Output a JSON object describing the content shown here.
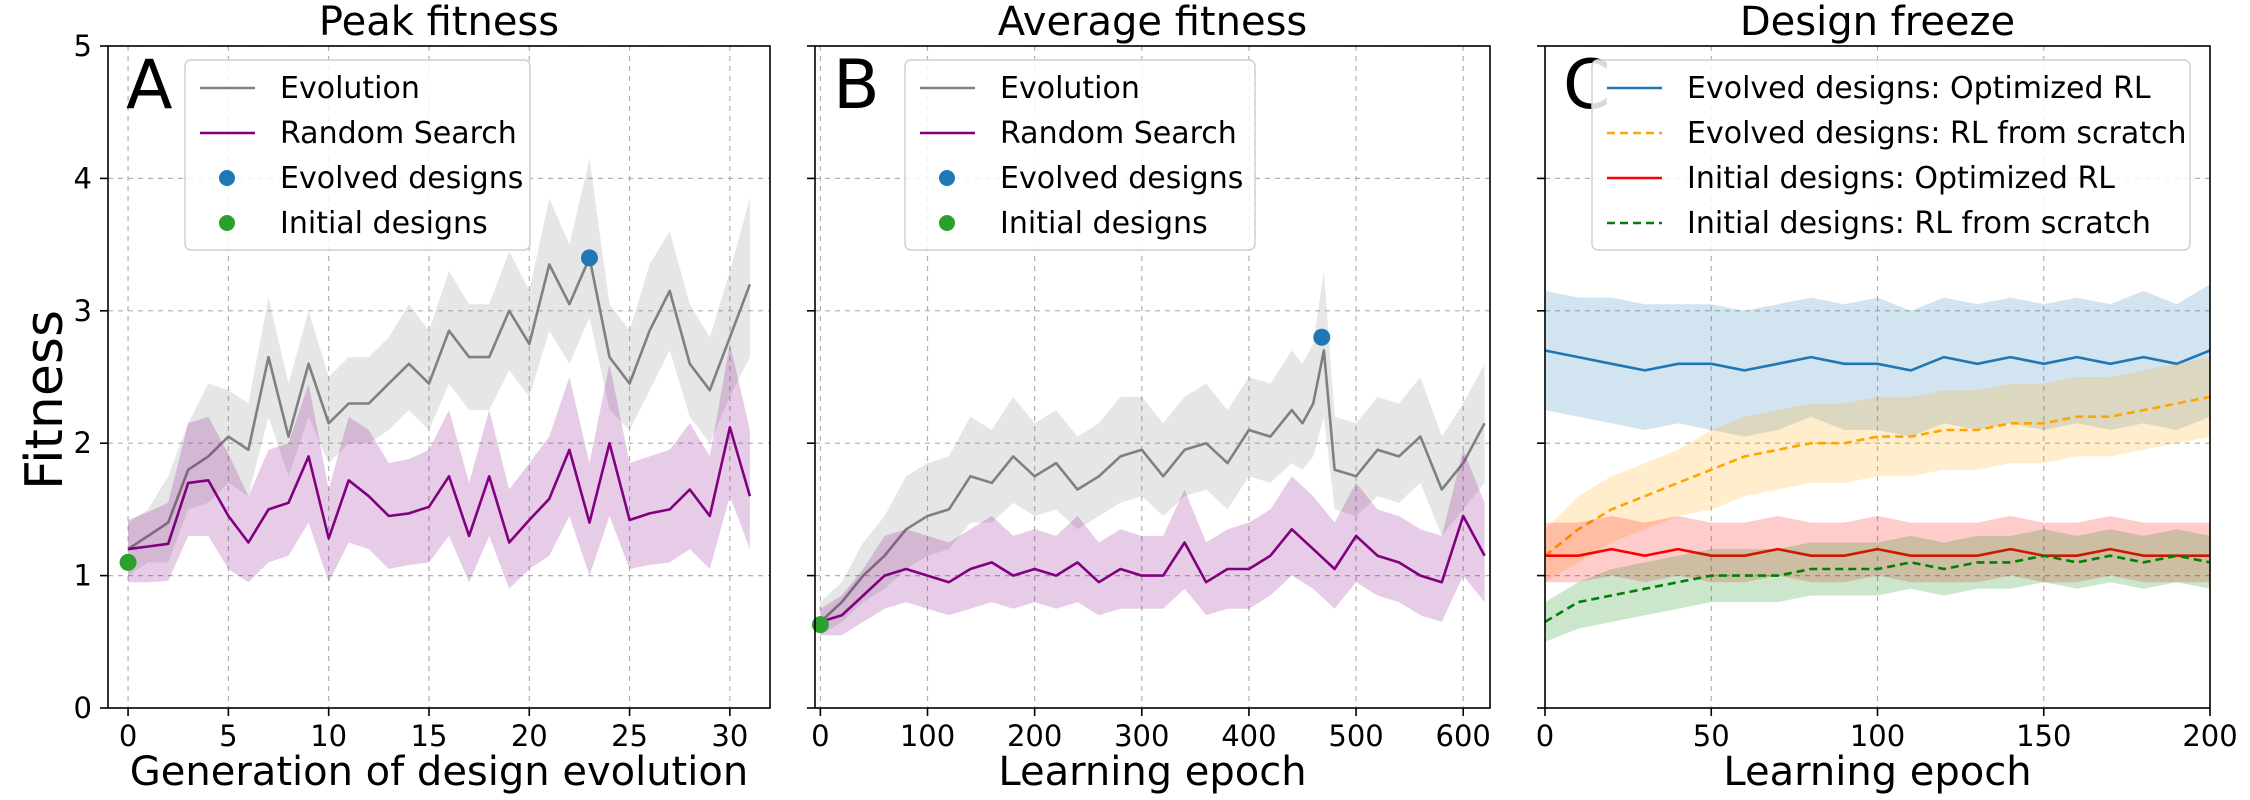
{
  "figure": {
    "ylabel": "Fitness",
    "colors": {
      "evolution": "#808080",
      "random_search": "#800080",
      "evolved_marker": "#1f77b4",
      "initial_marker": "#2ca02c",
      "evolved_optimized": "#1f77b4",
      "evolved_scratch": "#ffa500",
      "initial_optimized": "#ff0000",
      "initial_scratch": "#008000"
    }
  },
  "chart_data": [
    {
      "type": "line",
      "letter": "A",
      "title": "Peak fitness",
      "xlabel": "Generation of design evolution",
      "ylabel": "Fitness",
      "xlim": [
        -1,
        32
      ],
      "ylim": [
        0,
        5
      ],
      "xticks": [
        0,
        5,
        10,
        15,
        20,
        25,
        30
      ],
      "yticks": [
        0,
        1,
        2,
        3,
        4,
        5
      ],
      "grid": true,
      "legend_position": "top-left",
      "legend": [
        "Evolution",
        "Random Search",
        "Evolved designs",
        "Initial designs"
      ],
      "series": [
        {
          "name": "Evolution",
          "color": "#808080",
          "style": "solid",
          "x": [
            0,
            1,
            2,
            3,
            4,
            5,
            6,
            7,
            8,
            9,
            10,
            11,
            12,
            13,
            14,
            15,
            16,
            17,
            18,
            19,
            20,
            21,
            22,
            23,
            24,
            25,
            26,
            27,
            28,
            29,
            30,
            31
          ],
          "values": [
            1.2,
            1.3,
            1.4,
            1.8,
            1.9,
            2.05,
            1.95,
            2.65,
            2.05,
            2.6,
            2.15,
            2.3,
            2.3,
            2.45,
            2.6,
            2.45,
            2.85,
            2.65,
            2.65,
            3.0,
            2.75,
            3.35,
            3.05,
            3.4,
            2.65,
            2.45,
            2.85,
            3.15,
            2.6,
            2.4,
            2.8,
            3.2
          ],
          "band_low": [
            1.0,
            1.1,
            1.1,
            1.5,
            1.55,
            1.7,
            1.6,
            2.2,
            1.75,
            2.2,
            1.85,
            2.0,
            2.0,
            2.1,
            2.25,
            2.1,
            2.45,
            2.25,
            2.25,
            2.55,
            2.35,
            2.85,
            2.6,
            2.95,
            2.25,
            2.1,
            2.4,
            2.7,
            2.2,
            2.0,
            2.35,
            2.65
          ],
          "band_high": [
            1.4,
            1.5,
            1.75,
            2.15,
            2.45,
            2.4,
            2.3,
            3.1,
            2.45,
            3.0,
            2.5,
            2.65,
            2.65,
            2.8,
            3.05,
            2.85,
            3.3,
            3.05,
            3.05,
            3.45,
            3.15,
            3.85,
            3.5,
            4.15,
            3.05,
            2.85,
            3.35,
            3.6,
            3.05,
            2.8,
            3.3,
            3.85
          ]
        },
        {
          "name": "Random Search",
          "color": "#800080",
          "style": "solid",
          "x": [
            0,
            1,
            2,
            3,
            4,
            5,
            6,
            7,
            8,
            9,
            10,
            11,
            12,
            13,
            14,
            15,
            16,
            17,
            18,
            19,
            20,
            21,
            22,
            23,
            24,
            25,
            26,
            27,
            28,
            29,
            30,
            31
          ],
          "values": [
            1.2,
            1.22,
            1.24,
            1.7,
            1.72,
            1.45,
            1.25,
            1.5,
            1.55,
            1.9,
            1.28,
            1.72,
            1.6,
            1.45,
            1.47,
            1.52,
            1.75,
            1.3,
            1.75,
            1.25,
            1.42,
            1.58,
            1.95,
            1.4,
            2.0,
            1.42,
            1.47,
            1.5,
            1.65,
            1.45,
            2.12,
            1.6
          ],
          "band_low": [
            0.95,
            0.95,
            0.96,
            1.3,
            1.3,
            1.05,
            0.95,
            1.1,
            1.15,
            1.4,
            0.95,
            1.25,
            1.2,
            1.05,
            1.08,
            1.1,
            1.3,
            0.95,
            1.3,
            0.9,
            1.05,
            1.15,
            1.45,
            1.0,
            1.45,
            1.05,
            1.08,
            1.1,
            1.2,
            1.05,
            1.6,
            1.2
          ],
          "band_high": [
            1.42,
            1.48,
            1.55,
            2.15,
            2.2,
            1.92,
            1.6,
            1.95,
            2.0,
            2.45,
            1.65,
            2.2,
            2.1,
            1.85,
            1.88,
            1.95,
            2.25,
            1.7,
            2.25,
            1.65,
            1.85,
            2.05,
            2.5,
            1.85,
            2.6,
            1.85,
            1.9,
            1.95,
            2.15,
            1.9,
            2.75,
            2.1
          ]
        }
      ],
      "markers": [
        {
          "name": "Evolved designs",
          "color": "#1f77b4",
          "x": 23,
          "y": 3.4
        },
        {
          "name": "Initial designs",
          "color": "#2ca02c",
          "x": 0,
          "y": 1.1
        }
      ]
    },
    {
      "type": "line",
      "letter": "B",
      "title": "Average fitness",
      "xlabel": "Learning epoch",
      "xlim": [
        -5,
        625
      ],
      "ylim": [
        0,
        5
      ],
      "xticks": [
        0,
        100,
        200,
        300,
        400,
        500,
        600
      ],
      "yticks": [
        0,
        1,
        2,
        3,
        4,
        5
      ],
      "grid": true,
      "legend_position": "top-left",
      "legend": [
        "Evolution",
        "Random Search",
        "Evolved designs",
        "Initial designs"
      ],
      "series": [
        {
          "name": "Evolution",
          "color": "#808080",
          "style": "solid",
          "x": [
            0,
            20,
            40,
            60,
            80,
            100,
            120,
            140,
            160,
            180,
            200,
            220,
            240,
            260,
            280,
            300,
            320,
            340,
            360,
            380,
            400,
            420,
            440,
            450,
            460,
            470,
            480,
            500,
            520,
            540,
            560,
            580,
            600,
            620
          ],
          "values": [
            0.65,
            0.8,
            1.0,
            1.15,
            1.35,
            1.45,
            1.5,
            1.75,
            1.7,
            1.9,
            1.75,
            1.85,
            1.65,
            1.75,
            1.9,
            1.95,
            1.75,
            1.95,
            2.0,
            1.85,
            2.1,
            2.05,
            2.25,
            2.15,
            2.3,
            2.7,
            1.8,
            1.75,
            1.95,
            1.9,
            2.05,
            1.65,
            1.85,
            2.15
          ],
          "band_low": [
            0.55,
            0.65,
            0.8,
            0.9,
            1.05,
            1.15,
            1.2,
            1.4,
            1.4,
            1.55,
            1.45,
            1.5,
            1.35,
            1.45,
            1.55,
            1.6,
            1.45,
            1.6,
            1.65,
            1.5,
            1.75,
            1.7,
            1.85,
            1.8,
            1.9,
            2.2,
            1.5,
            1.45,
            1.6,
            1.55,
            1.7,
            1.3,
            1.5,
            1.7
          ],
          "band_high": [
            0.8,
            0.95,
            1.25,
            1.45,
            1.75,
            1.85,
            1.9,
            2.2,
            2.1,
            2.35,
            2.15,
            2.25,
            2.05,
            2.15,
            2.35,
            2.35,
            2.15,
            2.35,
            2.45,
            2.25,
            2.5,
            2.45,
            2.7,
            2.6,
            2.75,
            3.3,
            2.2,
            2.15,
            2.35,
            2.3,
            2.5,
            2.05,
            2.3,
            2.6
          ]
        },
        {
          "name": "Random Search",
          "color": "#800080",
          "style": "solid",
          "x": [
            0,
            20,
            40,
            60,
            80,
            100,
            120,
            140,
            160,
            180,
            200,
            220,
            240,
            260,
            280,
            300,
            320,
            340,
            360,
            380,
            400,
            420,
            440,
            460,
            480,
            500,
            520,
            540,
            560,
            580,
            600,
            620
          ],
          "values": [
            0.65,
            0.7,
            0.85,
            1.0,
            1.05,
            1.0,
            0.95,
            1.05,
            1.1,
            1.0,
            1.05,
            1.0,
            1.1,
            0.95,
            1.05,
            1.0,
            1.0,
            1.25,
            0.95,
            1.05,
            1.05,
            1.15,
            1.35,
            1.2,
            1.05,
            1.3,
            1.15,
            1.1,
            1.0,
            0.95,
            1.45,
            1.15
          ],
          "band_low": [
            0.55,
            0.55,
            0.65,
            0.75,
            0.8,
            0.75,
            0.7,
            0.75,
            0.8,
            0.75,
            0.8,
            0.75,
            0.8,
            0.7,
            0.75,
            0.75,
            0.75,
            0.9,
            0.7,
            0.75,
            0.75,
            0.85,
            1.0,
            0.9,
            0.75,
            0.95,
            0.85,
            0.8,
            0.7,
            0.65,
            1.0,
            0.8
          ],
          "band_high": [
            0.75,
            0.85,
            1.05,
            1.3,
            1.35,
            1.3,
            1.25,
            1.35,
            1.45,
            1.3,
            1.35,
            1.3,
            1.45,
            1.25,
            1.35,
            1.3,
            1.3,
            1.65,
            1.25,
            1.35,
            1.4,
            1.5,
            1.75,
            1.6,
            1.4,
            1.7,
            1.5,
            1.45,
            1.35,
            1.3,
            1.95,
            1.55
          ]
        }
      ],
      "markers": [
        {
          "name": "Evolved designs",
          "color": "#1f77b4",
          "x": 468,
          "y": 2.8
        },
        {
          "name": "Initial designs",
          "color": "#2ca02c",
          "x": 0,
          "y": 0.63
        }
      ]
    },
    {
      "type": "line",
      "letter": "C",
      "title": "Design freeze",
      "xlabel": "Learning epoch",
      "xlim": [
        0,
        200
      ],
      "ylim": [
        0,
        5
      ],
      "xticks": [
        0,
        50,
        100,
        150,
        200
      ],
      "yticks": [
        0,
        1,
        2,
        3,
        4,
        5
      ],
      "grid": true,
      "legend_position": "top",
      "legend": [
        "Evolved designs: Optimized RL",
        "Evolved designs: RL from scratch",
        "Initial designs: Optimized RL",
        "Initial designs: RL from scratch"
      ],
      "series": [
        {
          "name": "Evolved designs: Optimized RL",
          "color": "#1f77b4",
          "style": "solid",
          "x": [
            0,
            10,
            20,
            30,
            40,
            50,
            60,
            70,
            80,
            90,
            100,
            110,
            120,
            130,
            140,
            150,
            160,
            170,
            180,
            190,
            200
          ],
          "values": [
            2.7,
            2.65,
            2.6,
            2.55,
            2.6,
            2.6,
            2.55,
            2.6,
            2.65,
            2.6,
            2.6,
            2.55,
            2.65,
            2.6,
            2.65,
            2.6,
            2.65,
            2.6,
            2.65,
            2.6,
            2.7
          ],
          "band_low": [
            2.25,
            2.2,
            2.15,
            2.1,
            2.15,
            2.1,
            2.05,
            2.1,
            2.2,
            2.1,
            2.1,
            2.05,
            2.15,
            2.1,
            2.15,
            2.1,
            2.15,
            2.1,
            2.15,
            2.1,
            2.2
          ],
          "band_high": [
            3.15,
            3.1,
            3.1,
            3.05,
            3.05,
            3.05,
            3.0,
            3.05,
            3.1,
            3.05,
            3.1,
            3.0,
            3.1,
            3.05,
            3.1,
            3.05,
            3.1,
            3.05,
            3.15,
            3.05,
            3.2
          ]
        },
        {
          "name": "Evolved designs: RL from scratch",
          "color": "#ffa500",
          "style": "dashed",
          "x": [
            0,
            10,
            20,
            30,
            40,
            50,
            60,
            70,
            80,
            90,
            100,
            110,
            120,
            130,
            140,
            150,
            160,
            170,
            180,
            190,
            200
          ],
          "values": [
            1.15,
            1.35,
            1.5,
            1.6,
            1.7,
            1.8,
            1.9,
            1.95,
            2.0,
            2.0,
            2.05,
            2.05,
            2.1,
            2.1,
            2.15,
            2.15,
            2.2,
            2.2,
            2.25,
            2.3,
            2.35
          ],
          "band_low": [
            0.95,
            1.1,
            1.25,
            1.35,
            1.45,
            1.5,
            1.6,
            1.65,
            1.7,
            1.7,
            1.75,
            1.75,
            1.8,
            1.8,
            1.85,
            1.85,
            1.9,
            1.9,
            1.95,
            2.0,
            2.05
          ],
          "band_high": [
            1.35,
            1.6,
            1.75,
            1.85,
            1.95,
            2.1,
            2.2,
            2.25,
            2.3,
            2.3,
            2.35,
            2.35,
            2.4,
            2.4,
            2.45,
            2.45,
            2.5,
            2.5,
            2.55,
            2.6,
            2.65
          ]
        },
        {
          "name": "Initial designs: Optimized RL",
          "color": "#ff0000",
          "style": "solid",
          "x": [
            0,
            10,
            20,
            30,
            40,
            50,
            60,
            70,
            80,
            90,
            100,
            110,
            120,
            130,
            140,
            150,
            160,
            170,
            180,
            190,
            200
          ],
          "values": [
            1.15,
            1.15,
            1.2,
            1.15,
            1.2,
            1.15,
            1.15,
            1.2,
            1.15,
            1.15,
            1.2,
            1.15,
            1.15,
            1.15,
            1.2,
            1.15,
            1.15,
            1.2,
            1.15,
            1.15,
            1.15
          ],
          "band_low": [
            0.95,
            0.95,
            1.0,
            0.95,
            1.0,
            0.95,
            0.95,
            1.0,
            0.95,
            0.95,
            1.0,
            0.95,
            0.95,
            0.95,
            1.0,
            0.95,
            0.95,
            1.0,
            0.95,
            0.95,
            0.95
          ],
          "band_high": [
            1.4,
            1.4,
            1.45,
            1.4,
            1.45,
            1.4,
            1.4,
            1.45,
            1.4,
            1.4,
            1.45,
            1.4,
            1.4,
            1.4,
            1.45,
            1.4,
            1.4,
            1.45,
            1.4,
            1.4,
            1.4
          ]
        },
        {
          "name": "Initial designs: RL from scratch",
          "color": "#008000",
          "style": "dashed",
          "x": [
            0,
            10,
            20,
            30,
            40,
            50,
            60,
            70,
            80,
            90,
            100,
            110,
            120,
            130,
            140,
            150,
            160,
            170,
            180,
            190,
            200
          ],
          "values": [
            0.65,
            0.8,
            0.85,
            0.9,
            0.95,
            1.0,
            1.0,
            1.0,
            1.05,
            1.05,
            1.05,
            1.1,
            1.05,
            1.1,
            1.1,
            1.15,
            1.1,
            1.15,
            1.1,
            1.15,
            1.1
          ],
          "band_low": [
            0.5,
            0.6,
            0.65,
            0.7,
            0.75,
            0.8,
            0.8,
            0.8,
            0.85,
            0.85,
            0.85,
            0.9,
            0.85,
            0.9,
            0.9,
            0.95,
            0.9,
            0.95,
            0.9,
            0.95,
            0.9
          ],
          "band_high": [
            0.8,
            0.95,
            1.05,
            1.1,
            1.15,
            1.2,
            1.2,
            1.2,
            1.25,
            1.25,
            1.25,
            1.3,
            1.25,
            1.3,
            1.3,
            1.35,
            1.3,
            1.35,
            1.3,
            1.35,
            1.3
          ]
        }
      ],
      "markers": []
    }
  ]
}
